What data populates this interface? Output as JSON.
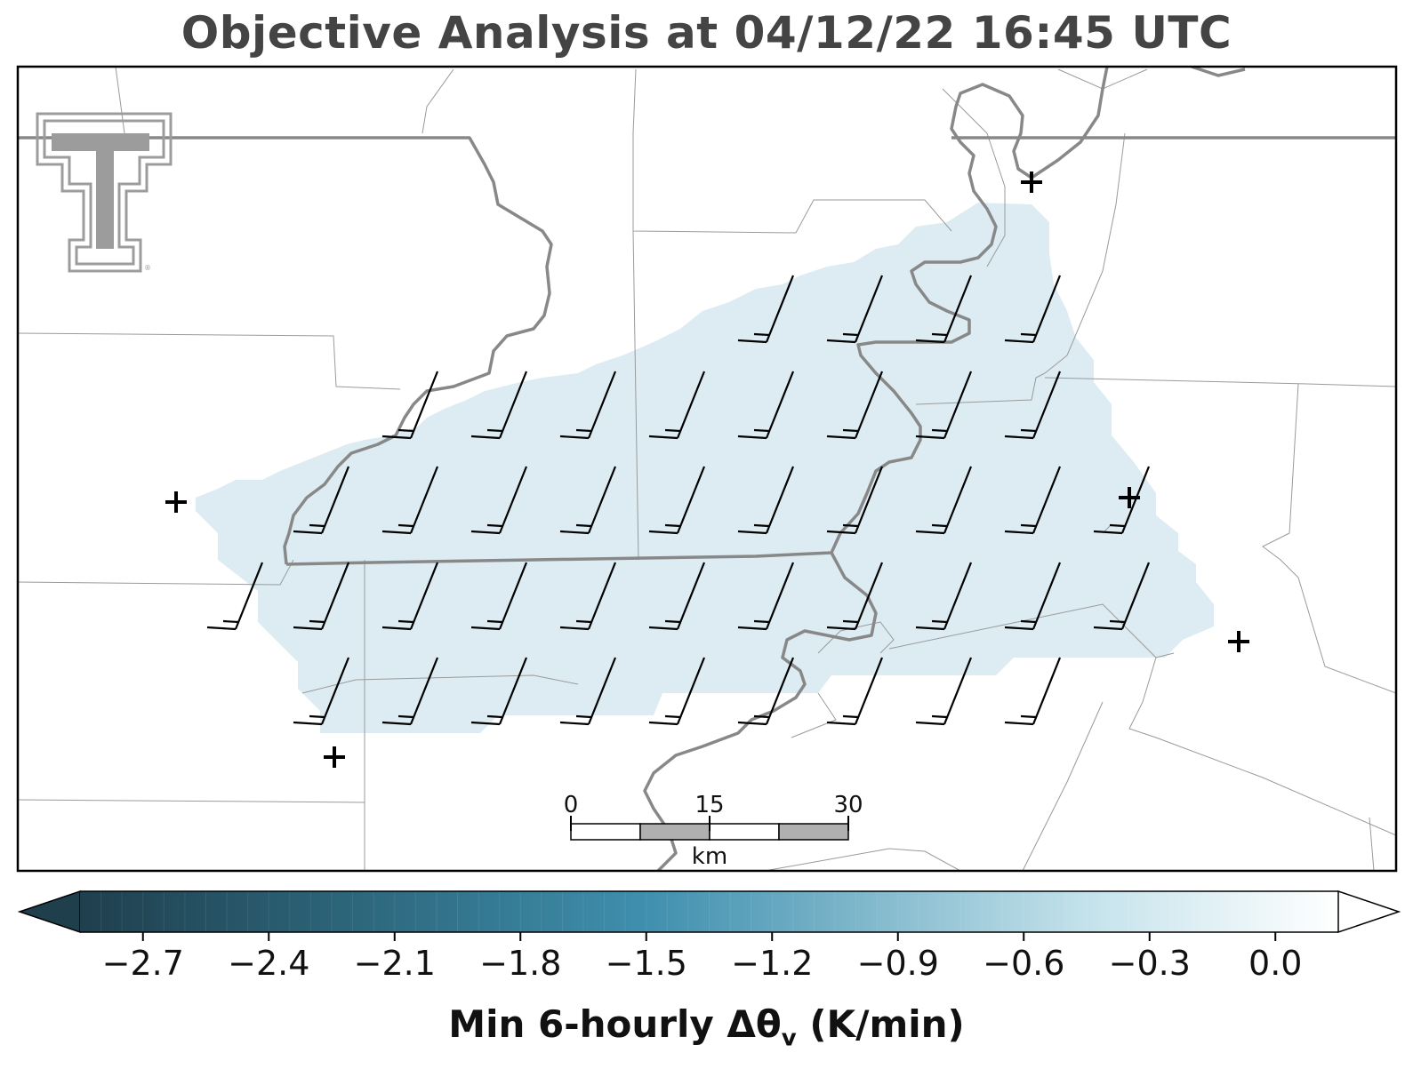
{
  "title": "Objective Analysis at 04/12/22 16:45 UTC",
  "colorbar": {
    "label_main": "Min 6-hourly Δθ",
    "label_sub": "v",
    "label_units": " (K/min)",
    "ticks": [
      "−2.7",
      "−2.4",
      "−2.1",
      "−1.8",
      "−1.5",
      "−1.2",
      "−0.9",
      "−0.6",
      "−0.3",
      "0.0"
    ],
    "tick_values": [
      -2.7,
      -2.4,
      -2.1,
      -1.8,
      -1.5,
      -1.2,
      -0.9,
      -0.6,
      -0.3,
      0.0
    ],
    "range": [
      -2.85,
      0.15
    ],
    "extend": "both",
    "colormap_stops": [
      "#1f4150",
      "#2e6a80",
      "#3f8fad",
      "#7fb6cc",
      "#c6e3ec",
      "#ffffff"
    ]
  },
  "scalebar": {
    "labels": [
      "0",
      "15",
      "30"
    ],
    "units": "km"
  },
  "logo": {
    "name": "texas-tech-double-t-logo"
  },
  "shaded_region": {
    "value": -0.15,
    "color": "#dcecf2"
  },
  "colors": {
    "border_primary": "#888888",
    "border_secondary": "#9a9a9a",
    "barb": "#000000",
    "station_marker": "#000000"
  },
  "wind_barbs": {
    "direction_deg": 200,
    "speed_kt": 15,
    "rows": 5,
    "cols": 10
  },
  "stations": {
    "count": 5,
    "symbol": "+"
  }
}
